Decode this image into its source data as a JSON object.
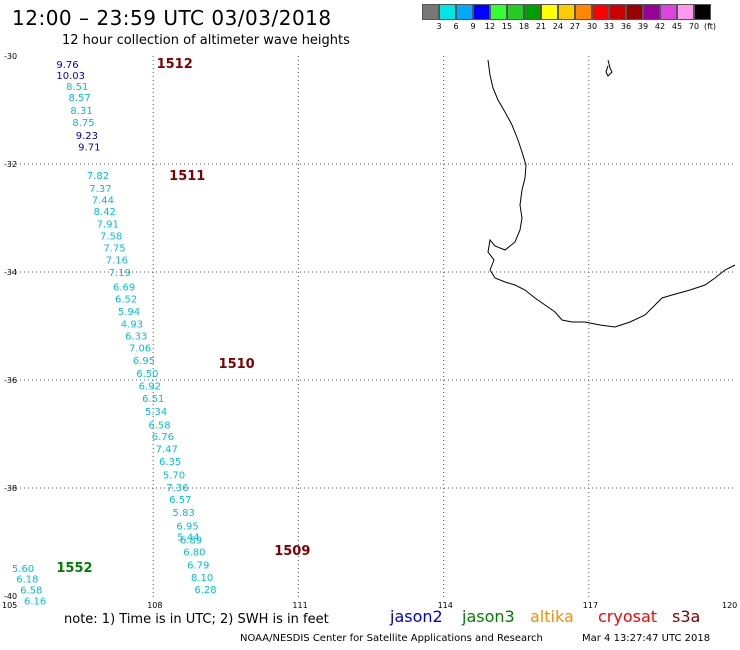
{
  "header": {
    "title": "12:00 – 23:59 UTC 03/03/2018",
    "subtitle": "12 hour collection of altimeter wave heights"
  },
  "scale": {
    "colors": [
      "#777777",
      "#00e5e5",
      "#00a8ff",
      "#0000ff",
      "#33ff33",
      "#22cc22",
      "#00a000",
      "#ffff00",
      "#ffcc00",
      "#ff8800",
      "#ff0000",
      "#cc0000",
      "#990000",
      "#990099",
      "#dd44dd",
      "#ff99ee",
      "#000000"
    ],
    "ticks": [
      "3",
      "6",
      "9",
      "12",
      "15",
      "18",
      "21",
      "24",
      "27",
      "30",
      "33",
      "36",
      "39",
      "42",
      "45",
      "70"
    ],
    "unit": "(ft)"
  },
  "axes": {
    "lat_labels": [
      "-30",
      "-32",
      "-34",
      "-36",
      "-38",
      "-40"
    ],
    "lon_labels": [
      "105",
      "108",
      "111",
      "114",
      "117",
      "120"
    ]
  },
  "tracks": [
    {
      "id": "1512",
      "color": "#800000",
      "label_lon": 108.07,
      "label_lat": -30.15
    },
    {
      "id": "1511",
      "color": "#800000",
      "label_lon": 108.33,
      "label_lat": -32.22
    },
    {
      "id": "1510",
      "color": "#800000",
      "label_lon": 109.35,
      "label_lat": -35.7
    },
    {
      "id": "1509",
      "color": "#800000",
      "label_lon": 110.5,
      "label_lat": -39.17
    },
    {
      "id": "1552",
      "color": "#008000",
      "label_lon": 106.0,
      "label_lat": -39.48
    }
  ],
  "wave_points": [
    {
      "v": "9.76",
      "lon": 106.0,
      "lat": -30.15,
      "c": "#0000cc"
    },
    {
      "v": "10.03",
      "lon": 106.0,
      "lat": -30.35,
      "c": "#0000cc"
    },
    {
      "v": "8.51",
      "lon": 106.2,
      "lat": -30.56,
      "c": "#00c0d8"
    },
    {
      "v": "8.57",
      "lon": 106.25,
      "lat": -30.76,
      "c": "#00c0d8"
    },
    {
      "v": "8.31",
      "lon": 106.29,
      "lat": -31.0,
      "c": "#00c0d8"
    },
    {
      "v": "8.75",
      "lon": 106.33,
      "lat": -31.22,
      "c": "#00c0d8"
    },
    {
      "v": "9.23",
      "lon": 106.4,
      "lat": -31.46,
      "c": "#0000cc"
    },
    {
      "v": "9.71",
      "lon": 106.45,
      "lat": -31.68,
      "c": "#0000cc"
    },
    {
      "v": "7.82",
      "lon": 106.63,
      "lat": -32.2,
      "c": "#00c0d8"
    },
    {
      "v": "7.37",
      "lon": 106.68,
      "lat": -32.44,
      "c": "#00c0d8"
    },
    {
      "v": "7.44",
      "lon": 106.73,
      "lat": -32.66,
      "c": "#00c0d8"
    },
    {
      "v": "8.42",
      "lon": 106.77,
      "lat": -32.87,
      "c": "#00c0d8"
    },
    {
      "v": "7.91",
      "lon": 106.83,
      "lat": -33.1,
      "c": "#00c0d8"
    },
    {
      "v": "7.58",
      "lon": 106.9,
      "lat": -33.32,
      "c": "#00c0d8"
    },
    {
      "v": "7.75",
      "lon": 106.97,
      "lat": -33.55,
      "c": "#00c0d8"
    },
    {
      "v": "7.16",
      "lon": 107.02,
      "lat": -33.77,
      "c": "#00c0d8"
    },
    {
      "v": "7.19",
      "lon": 107.08,
      "lat": -34.0,
      "c": "#00c0d8"
    },
    {
      "v": "6.69",
      "lon": 107.17,
      "lat": -34.27,
      "c": "#00c0d8"
    },
    {
      "v": "6.52",
      "lon": 107.21,
      "lat": -34.49,
      "c": "#00c0d8"
    },
    {
      "v": "5.94",
      "lon": 107.27,
      "lat": -34.72,
      "c": "#00c0d8"
    },
    {
      "v": "4.93",
      "lon": 107.33,
      "lat": -34.95,
      "c": "#00c0d8"
    },
    {
      "v": "6.33",
      "lon": 107.42,
      "lat": -35.18,
      "c": "#00c0d8"
    },
    {
      "v": "7.06",
      "lon": 107.5,
      "lat": -35.4,
      "c": "#00c0d8"
    },
    {
      "v": "6.95",
      "lon": 107.58,
      "lat": -35.63,
      "c": "#00c0d8"
    },
    {
      "v": "6.50",
      "lon": 107.65,
      "lat": -35.87,
      "c": "#00c0d8"
    },
    {
      "v": "6.92",
      "lon": 107.7,
      "lat": -36.1,
      "c": "#00c0d8"
    },
    {
      "v": "6.51",
      "lon": 107.77,
      "lat": -36.33,
      "c": "#00c0d8"
    },
    {
      "v": "5.34",
      "lon": 107.83,
      "lat": -36.57,
      "c": "#00c0d8"
    },
    {
      "v": "6.58",
      "lon": 107.9,
      "lat": -36.82,
      "c": "#00c0d8"
    },
    {
      "v": "6.76",
      "lon": 107.97,
      "lat": -37.04,
      "c": "#00c0d8"
    },
    {
      "v": "7.47",
      "lon": 108.05,
      "lat": -37.27,
      "c": "#00c0d8"
    },
    {
      "v": "6.35",
      "lon": 108.12,
      "lat": -37.5,
      "c": "#00c0d8"
    },
    {
      "v": "5.70",
      "lon": 108.2,
      "lat": -37.75,
      "c": "#00c0d8"
    },
    {
      "v": "7.36",
      "lon": 108.27,
      "lat": -37.98,
      "c": "#00c0d8"
    },
    {
      "v": "6.57",
      "lon": 108.33,
      "lat": -38.2,
      "c": "#00c0d8"
    },
    {
      "v": "5.83",
      "lon": 108.4,
      "lat": -38.44,
      "c": "#00c0d8"
    },
    {
      "v": "6.95",
      "lon": 108.48,
      "lat": -38.69,
      "c": "#00c0d8"
    },
    {
      "v": "6.89",
      "lon": 108.55,
      "lat": -38.95,
      "c": "#00c0d8"
    },
    {
      "v": "5.44",
      "lon": 108.5,
      "lat": -38.9,
      "c": "#00c0d8"
    },
    {
      "v": "6.80",
      "lon": 108.62,
      "lat": -39.18,
      "c": "#00c0d8"
    },
    {
      "v": "6.79",
      "lon": 108.7,
      "lat": -39.42,
      "c": "#00c0d8"
    },
    {
      "v": "8.10",
      "lon": 108.78,
      "lat": -39.65,
      "c": "#00c0d8"
    },
    {
      "v": "6.28",
      "lon": 108.85,
      "lat": -39.87,
      "c": "#00c0d8"
    },
    {
      "v": "5.60",
      "lon": 105.08,
      "lat": -39.48,
      "c": "#00c0d8"
    },
    {
      "v": "6.18",
      "lon": 105.17,
      "lat": -39.68,
      "c": "#00c0d8"
    },
    {
      "v": "6.58",
      "lon": 105.25,
      "lat": -39.88,
      "c": "#00c0d8"
    },
    {
      "v": "6.16",
      "lon": 105.33,
      "lat": -40.08,
      "c": "#00c0d8"
    }
  ],
  "footer": {
    "note": "note:  1) Time is in UTC; 2) SWH is in feet",
    "satellites": [
      {
        "name": "jason2",
        "color": "#0000cc"
      },
      {
        "name": "jason3",
        "color": "#008000"
      },
      {
        "name": "altika",
        "color": "#ff8c00"
      },
      {
        "name": "cryosat",
        "color": "#ff0000"
      },
      {
        "name": "s3a",
        "color": "#800000"
      }
    ],
    "credit": "NOAA/NESDIS Center for Satellite Applications and Research",
    "timestamp": "Mar  4 13:27:47 UTC 2018"
  }
}
